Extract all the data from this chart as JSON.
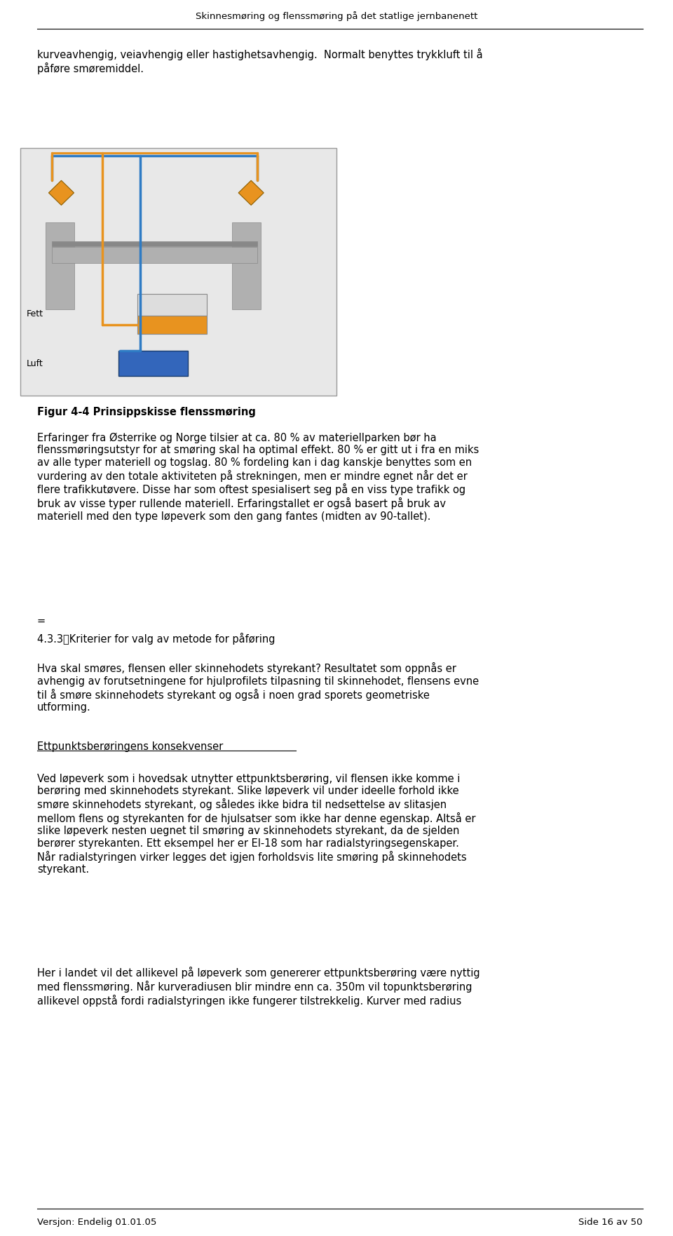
{
  "page_width": 9.6,
  "page_height": 17.62,
  "background_color": "#ffffff",
  "header_text": "Skinnesmøring og flenssmøring på det statlige jernbanenett",
  "footer_left": "Versjon: Endelig 01.01.05",
  "footer_right": "Side 16 av 50",
  "body_text_intro": "kurveavhengig, veiavhengig eller hastighetsavhengig.  Normalt benyttes trykkluft til å påføre smøremiddel.",
  "figure_caption": "Figur 4-4 Prinsippskisse flenssmøring",
  "paragraph1": "Erfaringer fra Østerrike og Norge tilsier at ca. 80 % av materiellparken bør ha flenssmøringsutstyr for at smøring skal ha optimal effekt. 80 % er gitt ut i fra en miks av alle typer materiell og togslag. 80 % fordeling kan i dag kanskje benyttes som en vurdering av den totale aktiviteten på strekningen, men er mindre egnet når det er flere trafikkutøvere. Disse har som oftest spesialisert seg på en viss type trafikk og bruk av visse typer rullende materiell. Erfaringstallet er også basert på bruk av materiell med den type løpeverk som den gang fantes (midten av 90-tallet).",
  "equals_sign": "=",
  "section_heading": "4.3.3\tKriterier for valg av metode for påføring",
  "paragraph2": "Hva skal smøres, flensen eller skinnehodets styrekant? Resultatet som oppnås er avhengig av forutsetningene for hjulprofilets tilpasning til skinnehodet, flensens evne til å smøre skinnehodets styrekant og også i noen grad sporets geometriske utforming.",
  "subheading": "Ettpunktsberøringens konsekvenser",
  "paragraph3": "Ved løpeverk som i hovedsak utnytter ettpunktsberøring, vil flensen ikke komme i berøring med skinnehodets styrekant. Slike løpeverk vil under ideelle forhold ikke smøre skinnehodets styrekant, og således ikke bidra til nedsettelse av slitasjen mellom flens og styrekanten for de hjulsatser som ikke har denne egenskap. Altså er slike løpeverk nesten uegnet til smøring av skinnehodets styrekant, da de sjelden berører styrekanten. Ett eksempel her er El-18 som har radialstyringsegenskaper. Når radialstyringen virker legges det igjen forholdsvis lite smøring på skinnehodets styrekant.",
  "paragraph4": "Her i landet vil det allikevel på løpeverk som genererer ettpunktsberøring være nyttig med flenssmøring. Når kurveradiusen blir mindre enn ca. 350m vil topunktsberøring allikevel oppstå fordi radialstyringen ikke fungerer tilstrekkelig. Kurver med radius"
}
